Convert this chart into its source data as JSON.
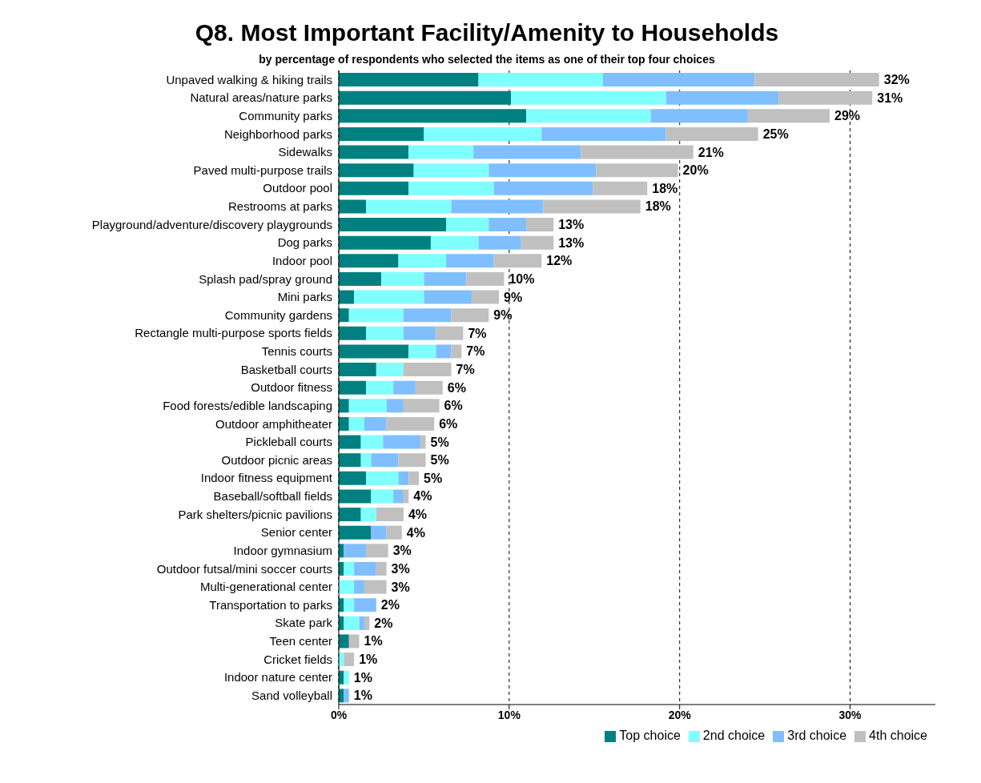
{
  "chart_data": {
    "type": "bar",
    "orientation": "horizontal",
    "stacked": true,
    "title": "Q8. Most Important Facility/Amenity to Households",
    "subtitle": "by percentage of respondents who selected the items as one of their top four choices",
    "categories": [
      "Unpaved walking & hiking trails",
      "Natural areas/nature parks",
      "Community parks",
      "Neighborhood parks",
      "Sidewalks",
      "Paved multi-purpose trails",
      "Outdoor pool",
      "Restrooms at parks",
      "Playground/adventure/discovery playgrounds",
      "Dog parks",
      "Indoor pool",
      "Splash pad/spray ground",
      "Mini parks",
      "Community gardens",
      "Rectangle multi-purpose sports fields",
      "Tennis courts",
      "Basketball courts",
      "Outdoor fitness",
      "Food forests/edible landscaping",
      "Outdoor amphitheater",
      "Pickleball courts",
      "Outdoor picnic areas",
      "Indoor fitness equipment",
      "Baseball/softball fields",
      "Park shelters/picnic pavilions",
      "Senior center",
      "Indoor gymnasium",
      "Outdoor futsal/mini soccer courts",
      "Multi-generational center",
      "Transportation to parks",
      "Skate park",
      "Teen center",
      "Cricket fields",
      "Indoor nature center",
      "Sand volleyball"
    ],
    "series": [
      {
        "name": "Top choice",
        "color": "#008080",
        "values": [
          8.2,
          10.1,
          11.0,
          5.0,
          4.1,
          4.4,
          4.1,
          1.6,
          6.3,
          5.4,
          3.5,
          2.5,
          0.9,
          0.6,
          1.6,
          4.1,
          2.2,
          1.6,
          0.6,
          0.6,
          1.3,
          1.3,
          1.6,
          1.9,
          1.3,
          1.9,
          0.3,
          0.3,
          0,
          0.3,
          0.3,
          0.6,
          0,
          0.3,
          0.3
        ]
      },
      {
        "name": "2nd choice",
        "color": "#80ffff",
        "values": [
          7.3,
          9.1,
          7.3,
          6.9,
          3.8,
          4.4,
          5.0,
          5.0,
          2.5,
          2.8,
          2.8,
          2.5,
          4.1,
          3.2,
          2.2,
          1.6,
          1.6,
          1.6,
          2.2,
          0.9,
          1.3,
          0.6,
          1.9,
          1.3,
          0.9,
          0,
          0,
          0.6,
          0.9,
          0.6,
          0.9,
          0,
          0.3,
          0.3,
          0
        ]
      },
      {
        "name": "3rd choice",
        "color": "#7fbfff",
        "values": [
          8.9,
          6.6,
          5.7,
          7.3,
          6.3,
          6.3,
          5.8,
          5.4,
          2.2,
          2.5,
          2.8,
          2.5,
          2.8,
          2.8,
          1.9,
          0.9,
          0,
          1.3,
          1.0,
          1.3,
          2.2,
          1.6,
          0.6,
          0.6,
          0,
          0.9,
          1.3,
          1.3,
          0.6,
          1.3,
          0.3,
          0,
          0,
          0,
          0.3
        ]
      },
      {
        "name": "4th choice",
        "color": "#c0c0c0",
        "values": [
          7.3,
          5.5,
          4.8,
          5.4,
          6.6,
          4.8,
          3.2,
          5.7,
          1.6,
          1.9,
          2.8,
          2.2,
          1.6,
          2.2,
          1.6,
          0.6,
          2.8,
          1.6,
          2.1,
          2.8,
          0.3,
          1.6,
          0.6,
          0.3,
          1.6,
          0.9,
          1.3,
          0.6,
          1.3,
          0,
          0.3,
          0.6,
          0.6,
          0,
          0
        ]
      }
    ],
    "totals": [
      "32%",
      "31%",
      "29%",
      "25%",
      "21%",
      "20%",
      "18%",
      "18%",
      "13%",
      "13%",
      "12%",
      "10%",
      "9%",
      "9%",
      "7%",
      "7%",
      "7%",
      "6%",
      "6%",
      "6%",
      "5%",
      "5%",
      "5%",
      "4%",
      "4%",
      "4%",
      "3%",
      "3%",
      "3%",
      "2%",
      "2%",
      "1%",
      "1%",
      "1%",
      "1%"
    ],
    "xlim": [
      0,
      35
    ],
    "xticks": [
      {
        "value": 0,
        "label": "0%"
      },
      {
        "value": 10,
        "label": "10%"
      },
      {
        "value": 20,
        "label": "20%"
      },
      {
        "value": 30,
        "label": "30%"
      }
    ],
    "grid": "x",
    "line_style": "dashed",
    "legend": "bottom right"
  }
}
